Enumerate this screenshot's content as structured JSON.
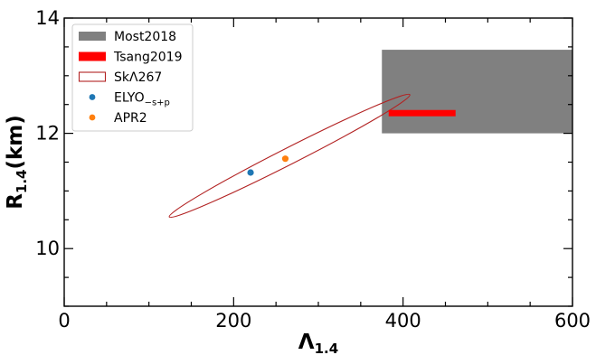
{
  "chart_data": {
    "type": "scatter",
    "xlabel": {
      "main": "Λ",
      "sub": "1.4"
    },
    "ylabel": {
      "main": "R",
      "sub": "1.4",
      "suffix": "(km)"
    },
    "xlim": [
      0,
      600
    ],
    "ylim": [
      9,
      14
    ],
    "xticks": [
      0,
      200,
      400,
      600
    ],
    "yticks": [
      10,
      12,
      14
    ],
    "xminor_step": 50,
    "yminor_step": 0.5,
    "grid": false,
    "legend_position": "top-left",
    "legend": [
      {
        "label": "Most2018",
        "kind": "filled-box",
        "color": "#808080"
      },
      {
        "label": "Tsang2019",
        "kind": "thick-bar",
        "color": "#ff0000"
      },
      {
        "label": "SkΛ267",
        "kind": "outline-box",
        "color": "#b22222"
      },
      {
        "label": "ELYO",
        "sub": "−s+p",
        "kind": "point",
        "color": "#1f77b4"
      },
      {
        "label": "APR2",
        "kind": "point",
        "color": "#ff7f0e"
      }
    ],
    "regions": [
      {
        "name": "Most2018",
        "x_range": [
          375,
          600
        ],
        "y_range": [
          12.0,
          13.45
        ],
        "color": "#808080"
      }
    ],
    "bars": [
      {
        "name": "Tsang2019",
        "x_range": [
          383,
          462
        ],
        "y": 12.35,
        "color": "#ff0000"
      }
    ],
    "ellipses": [
      {
        "name": "SkΛ267",
        "curve_ends": [
          [
            124,
            10.55
          ],
          [
            408,
            12.67
          ]
        ],
        "half_width_y": 0.16,
        "color": "#b22222"
      }
    ],
    "points": [
      {
        "name": "ELYO",
        "x": 220,
        "y": 11.32,
        "color": "#1f77b4"
      },
      {
        "name": "APR2",
        "x": 261,
        "y": 11.56,
        "color": "#ff7f0e"
      }
    ]
  }
}
